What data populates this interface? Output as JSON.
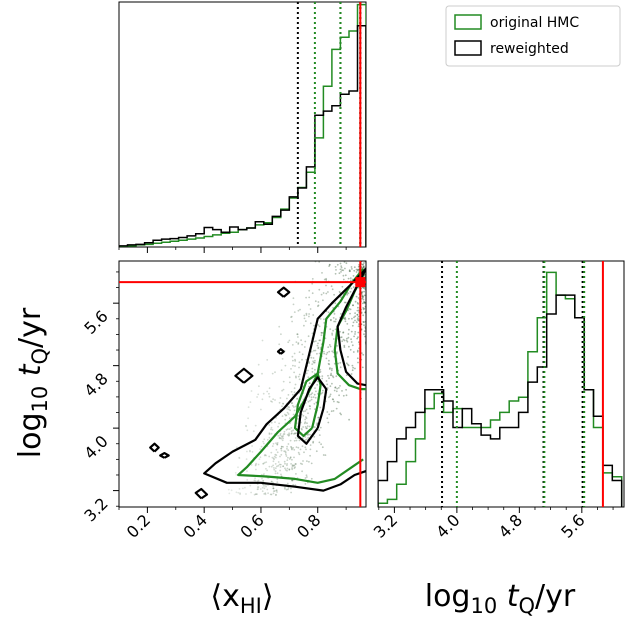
{
  "chart_data": {
    "type": "corner",
    "legend": {
      "placement": "top-right",
      "entries": [
        {
          "label": "original HMC",
          "color": "#228B22"
        },
        {
          "label": "reweighted",
          "color": "#000000"
        }
      ]
    },
    "colors": {
      "truth": "#FF0000",
      "hmc": "#228B22",
      "reweighted": "#000000",
      "scatter": "#4a6a4a"
    },
    "xhi": {
      "label_prefix": "⟨x",
      "label_sub": "HI",
      "label_suffix": "⟩",
      "range": [
        0.1,
        0.97
      ],
      "ticks": [
        {
          "v": 0.2,
          "label": "0.2"
        },
        {
          "v": 0.4,
          "label": "0.4"
        },
        {
          "v": 0.6,
          "label": "0.6"
        },
        {
          "v": 0.8,
          "label": "0.8"
        }
      ],
      "minor": [
        0.1,
        0.3,
        0.5,
        0.7,
        0.9
      ],
      "truth": 0.95,
      "quantiles_hmc": [
        0.79,
        0.88,
        0.95
      ],
      "quantiles_rw": [
        0.73,
        0.88,
        0.95
      ],
      "bins": [
        0.1,
        0.13,
        0.16,
        0.19,
        0.22,
        0.25,
        0.28,
        0.31,
        0.34,
        0.37,
        0.4,
        0.43,
        0.46,
        0.49,
        0.52,
        0.55,
        0.58,
        0.61,
        0.64,
        0.67,
        0.7,
        0.73,
        0.76,
        0.79,
        0.82,
        0.85,
        0.88,
        0.91,
        0.94,
        0.97
      ],
      "hist_hmc": [
        0,
        0.2,
        0.4,
        0.5,
        0.7,
        0.9,
        1.1,
        1.3,
        1.5,
        1.7,
        2.0,
        2.3,
        2.6,
        2.8,
        3.3,
        3.6,
        4.2,
        4.6,
        5.6,
        7.2,
        9.3,
        11.3,
        14.2,
        20.7,
        30.5,
        37.5,
        39.8,
        41.0,
        46.0
      ],
      "hist_rw": [
        0.2,
        0.4,
        0.5,
        0.8,
        1.3,
        1.5,
        1.6,
        1.8,
        2.1,
        2.5,
        3.7,
        3.3,
        2.8,
        3.8,
        3.3,
        3.6,
        4.8,
        4.3,
        5.8,
        7.0,
        9.5,
        11.2,
        15.2,
        25.0,
        25.8,
        26.8,
        29.0,
        29.6,
        42.0
      ]
    },
    "tq": {
      "label_prefix": "log",
      "label_sub": "10",
      "label_suffix": " t",
      "label_sub2": "Q",
      "label_unit": "/yr",
      "range": [
        2.99,
        6.14
      ],
      "ticks": [
        {
          "v": 3.2,
          "label": "3.2"
        },
        {
          "v": 4.0,
          "label": "4.0"
        },
        {
          "v": 4.8,
          "label": "4.8"
        },
        {
          "v": 5.6,
          "label": "5.6"
        }
      ],
      "minor": [
        3.0,
        3.4,
        3.6,
        3.8,
        4.2,
        4.4,
        4.6,
        5.0,
        5.2,
        5.4,
        5.8,
        6.0
      ],
      "truth": 5.87,
      "quantiles_hmc": [
        4.0,
        5.12,
        5.63
      ],
      "quantiles_rw": [
        3.81,
        5.11,
        5.61
      ],
      "bins": [
        2.99,
        3.11,
        3.23,
        3.35,
        3.47,
        3.59,
        3.71,
        3.83,
        3.95,
        4.07,
        4.19,
        4.31,
        4.43,
        4.55,
        4.67,
        4.79,
        4.91,
        5.03,
        5.15,
        5.27,
        5.39,
        5.51,
        5.63,
        5.75,
        5.87,
        5.99,
        6.11
      ],
      "hist_hmc": [
        0.05,
        0.1,
        0.3,
        0.6,
        0.9,
        1.3,
        1.5,
        1.25,
        1.3,
        1.05,
        1.05,
        1.05,
        1.15,
        1.25,
        1.4,
        1.45,
        2.05,
        2.5,
        3.1,
        2.8,
        2.75,
        2.5,
        1.55,
        1.05,
        0.45,
        0.4
      ],
      "hist_rw": [
        0.35,
        0.6,
        0.9,
        1.05,
        1.25,
        1.55,
        1.55,
        1.4,
        1.05,
        1.3,
        1.1,
        0.95,
        0.9,
        1.05,
        1.05,
        1.25,
        1.65,
        1.85,
        2.55,
        2.8,
        2.8,
        2.5,
        1.55,
        1.2,
        0.55,
        0.35
      ]
    },
    "joint": {
      "truth_point": [
        0.95,
        5.87
      ],
      "contours_hmc": [
        [
          [
            0.96,
            6.04
          ],
          [
            0.92,
            5.86
          ],
          [
            0.88,
            5.62
          ],
          [
            0.83,
            5.4
          ],
          [
            0.82,
            5.1
          ],
          [
            0.8,
            4.7
          ],
          [
            0.76,
            4.4
          ],
          [
            0.72,
            4.15
          ],
          [
            0.66,
            3.95
          ],
          [
            0.6,
            3.7
          ],
          [
            0.55,
            3.5
          ],
          [
            0.52,
            3.4
          ],
          [
            0.62,
            3.38
          ],
          [
            0.72,
            3.35
          ],
          [
            0.8,
            3.3
          ],
          [
            0.86,
            3.35
          ],
          [
            0.92,
            3.5
          ],
          [
            0.96,
            3.6
          ]
        ],
        [
          [
            0.96,
            5.96
          ],
          [
            0.93,
            5.75
          ],
          [
            0.9,
            5.5
          ],
          [
            0.87,
            5.3
          ],
          [
            0.86,
            5.0
          ],
          [
            0.87,
            4.7
          ],
          [
            0.91,
            4.55
          ],
          [
            0.95,
            4.5
          ],
          [
            0.97,
            4.5
          ]
        ],
        [
          [
            0.78,
            4.0
          ],
          [
            0.8,
            4.3
          ],
          [
            0.81,
            4.55
          ],
          [
            0.8,
            4.7
          ],
          [
            0.76,
            4.6
          ],
          [
            0.73,
            4.3
          ],
          [
            0.72,
            4.0
          ],
          [
            0.75,
            3.9
          ],
          [
            0.78,
            4.0
          ]
        ]
      ],
      "contours_rw": [
        [
          [
            0.97,
            6.04
          ],
          [
            0.95,
            5.9
          ],
          [
            0.9,
            5.55
          ],
          [
            0.87,
            5.3
          ],
          [
            0.88,
            5.0
          ],
          [
            0.9,
            4.72
          ],
          [
            0.94,
            4.57
          ],
          [
            0.97,
            4.55
          ]
        ],
        [
          [
            0.97,
            6.04
          ],
          [
            0.92,
            5.85
          ],
          [
            0.85,
            5.6
          ],
          [
            0.8,
            5.4
          ],
          [
            0.78,
            5.1
          ],
          [
            0.76,
            4.8
          ],
          [
            0.74,
            4.5
          ],
          [
            0.68,
            4.25
          ],
          [
            0.62,
            4.05
          ],
          [
            0.58,
            3.85
          ],
          [
            0.5,
            3.7
          ],
          [
            0.44,
            3.55
          ],
          [
            0.4,
            3.42
          ],
          [
            0.48,
            3.3
          ],
          [
            0.6,
            3.3
          ],
          [
            0.72,
            3.25
          ],
          [
            0.82,
            3.2
          ],
          [
            0.88,
            3.28
          ],
          [
            0.93,
            3.4
          ],
          [
            0.97,
            3.45
          ]
        ],
        [
          [
            0.8,
            4.0
          ],
          [
            0.82,
            4.25
          ],
          [
            0.83,
            4.5
          ],
          [
            0.8,
            4.65
          ],
          [
            0.77,
            4.5
          ],
          [
            0.74,
            4.2
          ],
          [
            0.73,
            3.9
          ],
          [
            0.76,
            3.8
          ],
          [
            0.8,
            4.0
          ]
        ],
        [
          [
            0.54,
            4.58
          ],
          [
            0.57,
            4.67
          ],
          [
            0.54,
            4.76
          ],
          [
            0.51,
            4.67
          ],
          [
            0.54,
            4.58
          ]
        ],
        [
          [
            0.68,
            5.68
          ],
          [
            0.7,
            5.74
          ],
          [
            0.68,
            5.8
          ],
          [
            0.66,
            5.74
          ],
          [
            0.68,
            5.68
          ]
        ],
        [
          [
            0.225,
            3.7
          ],
          [
            0.24,
            3.75
          ],
          [
            0.225,
            3.8
          ],
          [
            0.21,
            3.75
          ],
          [
            0.225,
            3.7
          ]
        ],
        [
          [
            0.26,
            3.62
          ],
          [
            0.275,
            3.65
          ],
          [
            0.26,
            3.68
          ],
          [
            0.245,
            3.65
          ],
          [
            0.26,
            3.62
          ]
        ],
        [
          [
            0.39,
            3.1
          ],
          [
            0.41,
            3.15
          ],
          [
            0.39,
            3.22
          ],
          [
            0.37,
            3.17
          ],
          [
            0.39,
            3.1
          ]
        ],
        [
          [
            0.67,
            4.95
          ],
          [
            0.68,
            4.98
          ],
          [
            0.67,
            5.01
          ],
          [
            0.66,
            4.98
          ],
          [
            0.67,
            4.95
          ]
        ]
      ]
    }
  }
}
